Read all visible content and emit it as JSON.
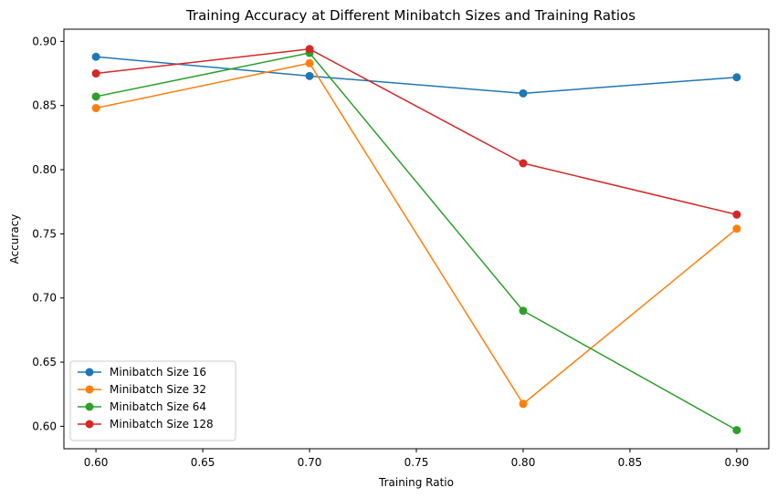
{
  "chart_data": {
    "type": "line",
    "title": "Training Accuracy at Different Minibatch Sizes and Training Ratios",
    "xlabel": "Training Ratio",
    "ylabel": "Accuracy",
    "x": [
      0.6,
      0.7,
      0.8,
      0.9
    ],
    "xlim": [
      0.585,
      0.915
    ],
    "ylim": [
      0.5825,
      0.9095
    ],
    "x_ticks": [
      0.6,
      0.65,
      0.7,
      0.75,
      0.8,
      0.85,
      0.9
    ],
    "x_tick_labels": [
      "0.60",
      "0.65",
      "0.70",
      "0.75",
      "0.80",
      "0.85",
      "0.90"
    ],
    "y_ticks": [
      0.6,
      0.65,
      0.7,
      0.75,
      0.8,
      0.85,
      0.9
    ],
    "y_tick_labels": [
      "0.60",
      "0.65",
      "0.70",
      "0.75",
      "0.80",
      "0.85",
      "0.90"
    ],
    "grid": false,
    "legend_position": "lower-left",
    "marker": "circle",
    "series": [
      {
        "name": "Minibatch Size 16",
        "color": "#1f77b4",
        "values": [
          0.888,
          0.873,
          0.8595,
          0.872
        ]
      },
      {
        "name": "Minibatch Size 32",
        "color": "#ff7f0e",
        "values": [
          0.848,
          0.883,
          0.6175,
          0.754
        ]
      },
      {
        "name": "Minibatch Size 64",
        "color": "#2ca02c",
        "values": [
          0.857,
          0.891,
          0.69,
          0.597
        ]
      },
      {
        "name": "Minibatch Size 128",
        "color": "#d62728",
        "values": [
          0.875,
          0.894,
          0.805,
          0.765
        ]
      }
    ]
  }
}
